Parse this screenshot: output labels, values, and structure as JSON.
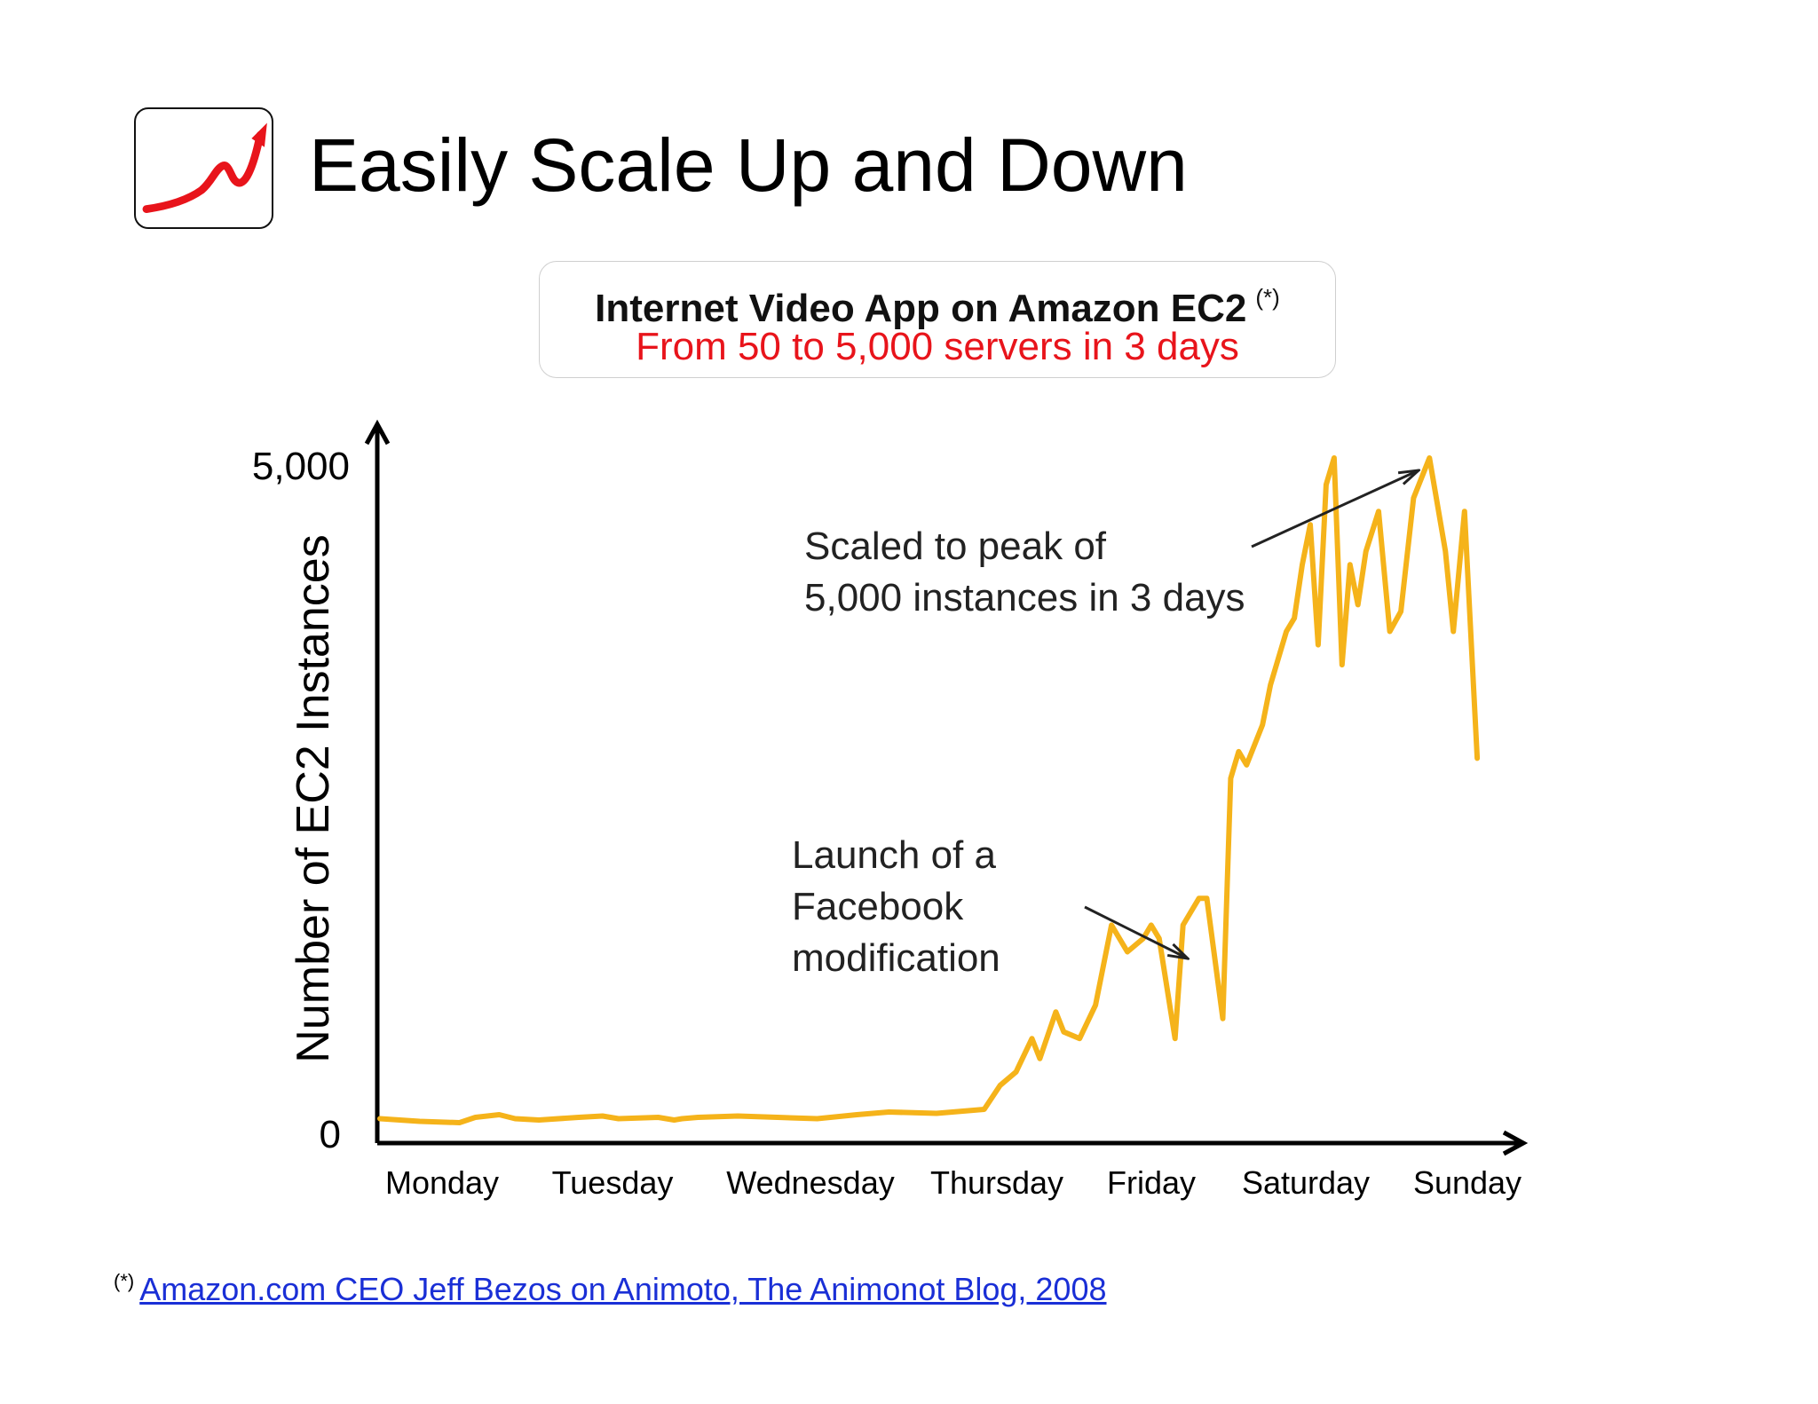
{
  "slide": {
    "title": "Easily Scale Up and Down",
    "icon": "trending-up-arrow-icon"
  },
  "callout": {
    "heading": "Internet Video App on Amazon EC2",
    "heading_marker": "(*)",
    "subheading": "From 50 to 5,000 servers in 3 days"
  },
  "annotations": {
    "peak_line1": "Scaled to peak of",
    "peak_line2": "5,000 instances in 3 days",
    "launch_line1": "Launch of a",
    "launch_line2": "Facebook",
    "launch_line3": "modification"
  },
  "footnote": {
    "marker": "(*)",
    "link_text": "Amazon.com CEO Jeff Bezos on Animoto, The Animonot Blog, 2008"
  },
  "colors": {
    "line": "#f5b31a",
    "subheading": "#e8141b",
    "link": "#1a2fd6",
    "icon_arrow": "#e8141b"
  },
  "chart_data": {
    "type": "line",
    "title": "",
    "xlabel": "",
    "ylabel": "Number of EC2 Instances",
    "categories": [
      "Monday",
      "Tuesday",
      "Wednesday",
      "Thursday",
      "Friday",
      "Saturday",
      "Sunday"
    ],
    "yticks": [
      "0",
      "5,000"
    ],
    "ylim": [
      0,
      5000
    ],
    "xlim": [
      0,
      7
    ],
    "grid": false,
    "legend": "none",
    "series": [
      {
        "name": "",
        "x": [
          0,
          0.25,
          0.5,
          0.6,
          0.75,
          0.85,
          1.0,
          1.25,
          1.4,
          1.5,
          1.75,
          1.85,
          1.9,
          2.0,
          2.25,
          2.5,
          2.75,
          3.0,
          3.2,
          3.5,
          3.8,
          3.9,
          4.0,
          4.1,
          4.15,
          4.25,
          4.3,
          4.4,
          4.5,
          4.6,
          4.7,
          4.8,
          4.85,
          4.9,
          5.0,
          5.05,
          5.1,
          5.15,
          5.2,
          5.3,
          5.35,
          5.4,
          5.45,
          5.55,
          5.6,
          5.7,
          5.75,
          5.8,
          5.85,
          5.9,
          5.95,
          6.0,
          6.05,
          6.1,
          6.15,
          6.2,
          6.28,
          6.35,
          6.42,
          6.5,
          6.6,
          6.7,
          6.75,
          6.82,
          6.9
        ],
        "values": [
          50,
          30,
          20,
          60,
          80,
          50,
          40,
          60,
          70,
          50,
          60,
          40,
          50,
          60,
          70,
          60,
          50,
          80,
          100,
          90,
          120,
          300,
          400,
          650,
          500,
          850,
          700,
          650,
          900,
          1500,
          1300,
          1400,
          1500,
          1400,
          650,
          1500,
          1600,
          1700,
          1700,
          800,
          2600,
          2800,
          2700,
          3000,
          3300,
          3700,
          3800,
          4200,
          4500,
          3600,
          4800,
          5000,
          3450,
          4200,
          3900,
          4300,
          4600,
          3700,
          3850,
          4700,
          5000,
          4300,
          3700,
          4600,
          2750
        ]
      }
    ]
  }
}
